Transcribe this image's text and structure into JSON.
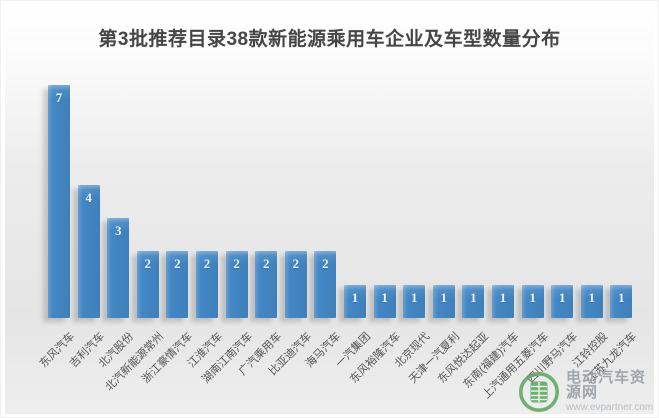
{
  "title": "第3批推荐目录38款新能源乘用车企业及车型数量分布",
  "chart_data": {
    "type": "bar",
    "title": "第3批推荐目录38款新能源乘用车企业及车型数量分布",
    "categories": [
      "东风汽车",
      "吉利汽车",
      "北汽股份",
      "北汽新能源常州",
      "浙江豪情汽车",
      "江淮汽车",
      "湖南江南汽车",
      "广汽乘用车",
      "比亚迪汽车",
      "海马汽车",
      "一汽集团",
      "东风裕隆汽车",
      "北京现代",
      "天津一汽夏利",
      "东风悦达起亚",
      "东南(福建)汽车",
      "上汽通用五菱汽车",
      "四川野马汽车",
      "江铃控股",
      "江苏九龙汽车"
    ],
    "values": [
      7,
      4,
      3,
      2,
      2,
      2,
      2,
      2,
      2,
      2,
      1,
      1,
      1,
      1,
      1,
      1,
      1,
      1,
      1,
      1
    ],
    "xlabel": "",
    "ylabel": "",
    "ylim": [
      0,
      7.5
    ],
    "grid": false,
    "legend": "none",
    "value_labels_shown": true,
    "x_tick_rotation_deg": 45,
    "total_models": 38
  },
  "watermark": {
    "site_name": "电动汽车资源网",
    "site_url": "www.evpartner.com",
    "logo": "evpartner-green-seal"
  },
  "colors": {
    "bar": "#4287c5",
    "title_text": "#464646",
    "axis_label_text": "#565656",
    "value_label_text": "#f2f6fa",
    "watermark_green": "#5fa763",
    "watermark_text": "#9fa6ab",
    "watermark_url": "#b9bfc4",
    "plot_bg_top": "#ffffff",
    "plot_bg_bottom": "#e5e5e5"
  }
}
